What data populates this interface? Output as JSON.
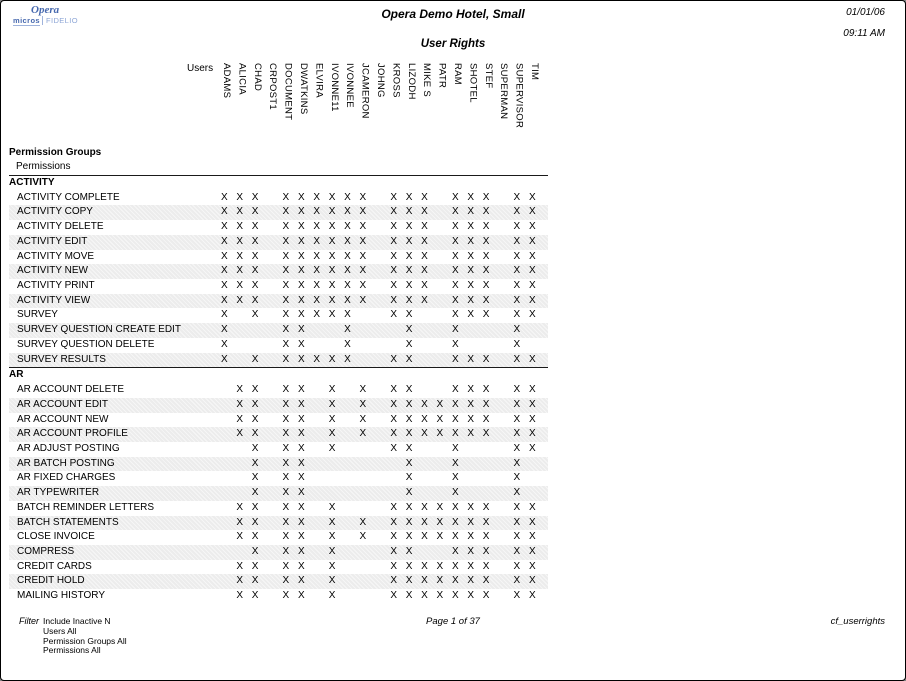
{
  "header": {
    "logo_line1": "Opera",
    "logo_micros": "micros",
    "logo_fidelio": "FIDELIO",
    "hotel_title": "Opera Demo Hotel, Small",
    "date": "01/01/06",
    "time": "09:11 AM",
    "report_title": "User Rights"
  },
  "table": {
    "users_label": "Users",
    "group_header": "Permission Groups",
    "permissions_header": "Permissions",
    "mark_glyph": "X",
    "users": [
      "ADAMS",
      "ALICIA",
      "CHAD",
      "CRPOST1",
      "DOCUMENT",
      "DWATKINS",
      "ELVIRA",
      "IVONNE11",
      "IVONNEE",
      "JCAMERON",
      "JOHNG",
      "KROSS",
      "LIZODH",
      "MIKE S",
      "PATR",
      "RAM",
      "SHOTEL",
      "STEF",
      "SUPERMAN",
      "SUPERVISOR",
      "TIM"
    ],
    "sections": [
      {
        "name": "ACTIVITY",
        "rows": [
          {
            "label": "ACTIVITY COMPLETE",
            "marks": [
              1,
              1,
              1,
              0,
              1,
              1,
              1,
              1,
              1,
              1,
              0,
              1,
              1,
              1,
              0,
              1,
              1,
              1,
              0,
              1,
              1
            ]
          },
          {
            "label": "ACTIVITY COPY",
            "marks": [
              1,
              1,
              1,
              0,
              1,
              1,
              1,
              1,
              1,
              1,
              0,
              1,
              1,
              1,
              0,
              1,
              1,
              1,
              0,
              1,
              1
            ]
          },
          {
            "label": "ACTIVITY DELETE",
            "marks": [
              1,
              1,
              1,
              0,
              1,
              1,
              1,
              1,
              1,
              1,
              0,
              1,
              1,
              1,
              0,
              1,
              1,
              1,
              0,
              1,
              1
            ]
          },
          {
            "label": "ACTIVITY EDIT",
            "marks": [
              1,
              1,
              1,
              0,
              1,
              1,
              1,
              1,
              1,
              1,
              0,
              1,
              1,
              1,
              0,
              1,
              1,
              1,
              0,
              1,
              1
            ]
          },
          {
            "label": "ACTIVITY MOVE",
            "marks": [
              1,
              1,
              1,
              0,
              1,
              1,
              1,
              1,
              1,
              1,
              0,
              1,
              1,
              1,
              0,
              1,
              1,
              1,
              0,
              1,
              1
            ]
          },
          {
            "label": "ACTIVITY NEW",
            "marks": [
              1,
              1,
              1,
              0,
              1,
              1,
              1,
              1,
              1,
              1,
              0,
              1,
              1,
              1,
              0,
              1,
              1,
              1,
              0,
              1,
              1
            ]
          },
          {
            "label": "ACTIVITY PRINT",
            "marks": [
              1,
              1,
              1,
              0,
              1,
              1,
              1,
              1,
              1,
              1,
              0,
              1,
              1,
              1,
              0,
              1,
              1,
              1,
              0,
              1,
              1
            ]
          },
          {
            "label": "ACTIVITY VIEW",
            "marks": [
              1,
              1,
              1,
              0,
              1,
              1,
              1,
              1,
              1,
              1,
              0,
              1,
              1,
              1,
              0,
              1,
              1,
              1,
              0,
              1,
              1
            ]
          },
          {
            "label": "SURVEY",
            "marks": [
              1,
              0,
              1,
              0,
              1,
              1,
              1,
              1,
              1,
              0,
              0,
              1,
              1,
              0,
              0,
              1,
              1,
              1,
              0,
              1,
              1
            ]
          },
          {
            "label": "SURVEY QUESTION CREATE EDIT",
            "marks": [
              1,
              0,
              0,
              0,
              1,
              1,
              0,
              0,
              1,
              0,
              0,
              0,
              1,
              0,
              0,
              1,
              0,
              0,
              0,
              1,
              0
            ]
          },
          {
            "label": "SURVEY QUESTION DELETE",
            "marks": [
              1,
              0,
              0,
              0,
              1,
              1,
              0,
              0,
              1,
              0,
              0,
              0,
              1,
              0,
              0,
              1,
              0,
              0,
              0,
              1,
              0
            ]
          },
          {
            "label": "SURVEY RESULTS",
            "marks": [
              1,
              0,
              1,
              0,
              1,
              1,
              1,
              1,
              1,
              0,
              0,
              1,
              1,
              0,
              0,
              1,
              1,
              1,
              0,
              1,
              1
            ]
          }
        ]
      },
      {
        "name": "AR",
        "rows": [
          {
            "label": "AR ACCOUNT DELETE",
            "marks": [
              0,
              1,
              1,
              0,
              1,
              1,
              0,
              1,
              0,
              1,
              0,
              1,
              1,
              0,
              0,
              1,
              1,
              1,
              0,
              1,
              1
            ]
          },
          {
            "label": "AR ACCOUNT EDIT",
            "marks": [
              0,
              1,
              1,
              0,
              1,
              1,
              0,
              1,
              0,
              1,
              0,
              1,
              1,
              1,
              1,
              1,
              1,
              1,
              0,
              1,
              1
            ]
          },
          {
            "label": "AR ACCOUNT NEW",
            "marks": [
              0,
              1,
              1,
              0,
              1,
              1,
              0,
              1,
              0,
              1,
              0,
              1,
              1,
              1,
              1,
              1,
              1,
              1,
              0,
              1,
              1
            ]
          },
          {
            "label": "AR ACCOUNT PROFILE",
            "marks": [
              0,
              1,
              1,
              0,
              1,
              1,
              0,
              1,
              0,
              1,
              0,
              1,
              1,
              1,
              1,
              1,
              1,
              1,
              0,
              1,
              1
            ]
          },
          {
            "label": "AR ADJUST POSTING",
            "marks": [
              0,
              0,
              1,
              0,
              1,
              1,
              0,
              1,
              0,
              0,
              0,
              1,
              1,
              0,
              0,
              1,
              0,
              0,
              0,
              1,
              1
            ]
          },
          {
            "label": "AR BATCH POSTING",
            "marks": [
              0,
              0,
              1,
              0,
              1,
              1,
              0,
              0,
              0,
              0,
              0,
              0,
              1,
              0,
              0,
              1,
              0,
              0,
              0,
              1,
              0
            ]
          },
          {
            "label": "AR FIXED CHARGES",
            "marks": [
              0,
              0,
              1,
              0,
              1,
              1,
              0,
              0,
              0,
              0,
              0,
              0,
              1,
              0,
              0,
              1,
              0,
              0,
              0,
              1,
              0
            ]
          },
          {
            "label": "AR TYPEWRITER",
            "marks": [
              0,
              0,
              1,
              0,
              1,
              1,
              0,
              0,
              0,
              0,
              0,
              0,
              1,
              0,
              0,
              1,
              0,
              0,
              0,
              1,
              0
            ]
          },
          {
            "label": "BATCH REMINDER LETTERS",
            "marks": [
              0,
              1,
              1,
              0,
              1,
              1,
              0,
              1,
              0,
              0,
              0,
              1,
              1,
              1,
              1,
              1,
              1,
              1,
              0,
              1,
              1
            ]
          },
          {
            "label": "BATCH STATEMENTS",
            "marks": [
              0,
              1,
              1,
              0,
              1,
              1,
              0,
              1,
              0,
              1,
              0,
              1,
              1,
              1,
              1,
              1,
              1,
              1,
              0,
              1,
              1
            ]
          },
          {
            "label": "CLOSE INVOICE",
            "marks": [
              0,
              1,
              1,
              0,
              1,
              1,
              0,
              1,
              0,
              1,
              0,
              1,
              1,
              1,
              1,
              1,
              1,
              1,
              0,
              1,
              1
            ]
          },
          {
            "label": "COMPRESS",
            "marks": [
              0,
              0,
              1,
              0,
              1,
              1,
              0,
              1,
              0,
              0,
              0,
              1,
              1,
              0,
              0,
              1,
              1,
              1,
              0,
              1,
              1
            ]
          },
          {
            "label": "CREDIT CARDS",
            "marks": [
              0,
              1,
              1,
              0,
              1,
              1,
              0,
              1,
              0,
              0,
              0,
              1,
              1,
              1,
              1,
              1,
              1,
              1,
              0,
              1,
              1
            ]
          },
          {
            "label": "CREDIT HOLD",
            "marks": [
              0,
              1,
              1,
              0,
              1,
              1,
              0,
              1,
              0,
              0,
              0,
              1,
              1,
              1,
              1,
              1,
              1,
              1,
              0,
              1,
              1
            ]
          },
          {
            "label": "MAILING HISTORY",
            "marks": [
              0,
              1,
              1,
              0,
              1,
              1,
              0,
              1,
              0,
              0,
              0,
              1,
              1,
              1,
              1,
              1,
              1,
              1,
              0,
              1,
              1
            ]
          }
        ]
      }
    ]
  },
  "footer": {
    "filter_label": "Filter",
    "filter_lines": [
      "Include Inactive N",
      "Users All",
      "Permission Groups All",
      "Permissions All"
    ],
    "page_text": "Page 1 of 37",
    "report_code": "cf_userrights"
  },
  "colors": {
    "logo_blue": "#4668ae",
    "logo_blue_light": "#8da6d6",
    "row_shade": "#ececec",
    "text": "#000000"
  }
}
